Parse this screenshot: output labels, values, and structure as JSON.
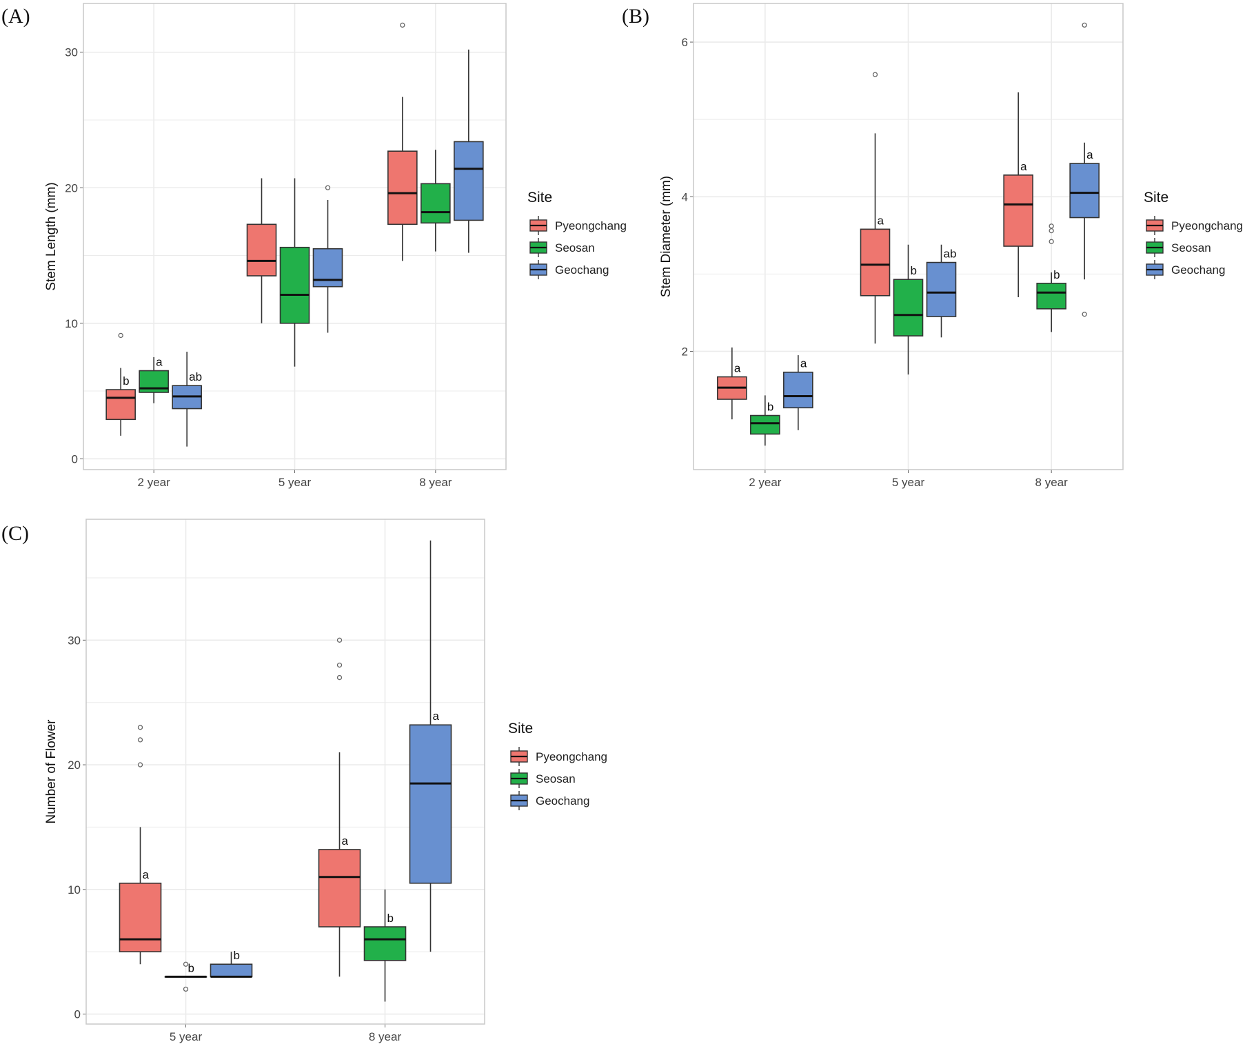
{
  "colors": {
    "Pyeongchang": "#EE766F",
    "Seosan": "#22B04A",
    "Geochang": "#6890D0",
    "grid": "#EBEBEB",
    "frame": "#C8C8C8"
  },
  "legend": {
    "title": "Site",
    "entries": [
      "Pyeongchang",
      "Seosan",
      "Geochang"
    ]
  },
  "chart_data": [
    {
      "panel": "(A)",
      "type": "box",
      "ylabel": "Stem Length (mm)",
      "xlabel": "",
      "categories": [
        "2 year",
        "5 year",
        "8 year"
      ],
      "ylim": [
        -0.8,
        33.6
      ],
      "yticks": [
        0,
        10,
        20,
        30
      ],
      "legend_position": "right",
      "series": [
        {
          "name": "Pyeongchang",
          "boxes": [
            {
              "category": "2 year",
              "min": 1.7,
              "q1": 2.9,
              "median": 4.5,
              "q3": 5.1,
              "max": 6.7,
              "outliers": [
                9.1
              ],
              "letter": "b"
            },
            {
              "category": "5 year",
              "min": 10.0,
              "q1": 13.5,
              "median": 14.6,
              "q3": 17.3,
              "max": 20.7,
              "outliers": [],
              "letter": ""
            },
            {
              "category": "8 year",
              "min": 14.6,
              "q1": 17.3,
              "median": 19.6,
              "q3": 22.7,
              "max": 26.7,
              "outliers": [
                32.0
              ],
              "letter": ""
            }
          ]
        },
        {
          "name": "Seosan",
          "boxes": [
            {
              "category": "2 year",
              "min": 4.1,
              "q1": 4.9,
              "median": 5.2,
              "q3": 6.5,
              "max": 7.5,
              "outliers": [],
              "letter": "a"
            },
            {
              "category": "5 year",
              "min": 6.8,
              "q1": 10.0,
              "median": 12.1,
              "q3": 15.6,
              "max": 20.7,
              "outliers": [],
              "letter": ""
            },
            {
              "category": "8 year",
              "min": 15.3,
              "q1": 17.4,
              "median": 18.2,
              "q3": 20.3,
              "max": 22.8,
              "outliers": [],
              "letter": ""
            }
          ]
        },
        {
          "name": "Geochang",
          "boxes": [
            {
              "category": "2 year",
              "min": 0.9,
              "q1": 3.7,
              "median": 4.6,
              "q3": 5.4,
              "max": 7.9,
              "outliers": [],
              "letter": "ab"
            },
            {
              "category": "5 year",
              "min": 9.3,
              "q1": 12.7,
              "median": 13.2,
              "q3": 15.5,
              "max": 19.1,
              "outliers": [
                20.0
              ],
              "letter": ""
            },
            {
              "category": "8 year",
              "min": 15.2,
              "q1": 17.6,
              "median": 21.4,
              "q3": 23.4,
              "max": 30.2,
              "outliers": [],
              "letter": ""
            }
          ]
        }
      ]
    },
    {
      "panel": "(B)",
      "type": "box",
      "ylabel": "Stem Diameter (mm)",
      "xlabel": "",
      "categories": [
        "2 year",
        "5 year",
        "8 year"
      ],
      "ylim": [
        0.47,
        6.5
      ],
      "yticks": [
        2,
        4,
        6
      ],
      "legend_position": "right",
      "series": [
        {
          "name": "Pyeongchang",
          "boxes": [
            {
              "category": "2 year",
              "min": 1.12,
              "q1": 1.38,
              "median": 1.53,
              "q3": 1.67,
              "max": 2.05,
              "outliers": [],
              "letter": "a"
            },
            {
              "category": "5 year",
              "min": 2.1,
              "q1": 2.72,
              "median": 3.12,
              "q3": 3.58,
              "max": 4.82,
              "outliers": [
                5.58
              ],
              "letter": "a"
            },
            {
              "category": "8 year",
              "min": 2.7,
              "q1": 3.36,
              "median": 3.9,
              "q3": 4.28,
              "max": 5.35,
              "outliers": [],
              "letter": "a"
            }
          ]
        },
        {
          "name": "Seosan",
          "boxes": [
            {
              "category": "2 year",
              "min": 0.78,
              "q1": 0.93,
              "median": 1.07,
              "q3": 1.17,
              "max": 1.43,
              "outliers": [],
              "letter": "b"
            },
            {
              "category": "5 year",
              "min": 1.7,
              "q1": 2.2,
              "median": 2.47,
              "q3": 2.93,
              "max": 3.38,
              "outliers": [],
              "letter": "b"
            },
            {
              "category": "8 year",
              "min": 2.25,
              "q1": 2.55,
              "median": 2.76,
              "q3": 2.88,
              "max": 3.02,
              "outliers": [
                3.42,
                3.56,
                3.62
              ],
              "letter": "b"
            }
          ]
        },
        {
          "name": "Geochang",
          "boxes": [
            {
              "category": "2 year",
              "min": 0.98,
              "q1": 1.27,
              "median": 1.42,
              "q3": 1.73,
              "max": 1.95,
              "outliers": [],
              "letter": "a"
            },
            {
              "category": "5 year",
              "min": 2.18,
              "q1": 2.45,
              "median": 2.76,
              "q3": 3.15,
              "max": 3.38,
              "outliers": [],
              "letter": "ab"
            },
            {
              "category": "8 year",
              "min": 2.93,
              "q1": 3.73,
              "median": 4.05,
              "q3": 4.43,
              "max": 4.7,
              "outliers": [
                2.48,
                6.22
              ],
              "letter": "a"
            }
          ]
        }
      ]
    },
    {
      "panel": "(C)",
      "type": "box",
      "ylabel": "Number of Flower",
      "xlabel": "",
      "categories": [
        "5 year",
        "8 year"
      ],
      "ylim": [
        -0.8,
        39.7
      ],
      "yticks": [
        0,
        10,
        20,
        30
      ],
      "legend_position": "right",
      "series": [
        {
          "name": "Pyeongchang",
          "boxes": [
            {
              "category": "5 year",
              "min": 4,
              "q1": 5,
              "median": 6,
              "q3": 10.5,
              "max": 15,
              "outliers": [
                20,
                22,
                23
              ],
              "letter": "a"
            },
            {
              "category": "8 year",
              "min": 3,
              "q1": 7,
              "median": 11,
              "q3": 13.2,
              "max": 21,
              "outliers": [
                27,
                28,
                30
              ],
              "letter": "a"
            }
          ]
        },
        {
          "name": "Seosan",
          "boxes": [
            {
              "category": "5 year",
              "min": 3,
              "q1": 3,
              "median": 3,
              "q3": 3,
              "max": 3,
              "outliers": [
                2,
                4
              ],
              "letter": "b"
            },
            {
              "category": "8 year",
              "min": 1,
              "q1": 4.3,
              "median": 6,
              "q3": 7,
              "max": 10,
              "outliers": [],
              "letter": "b"
            }
          ]
        },
        {
          "name": "Geochang",
          "boxes": [
            {
              "category": "5 year",
              "min": 3,
              "q1": 3,
              "median": 3,
              "q3": 4,
              "max": 5,
              "outliers": [],
              "letter": "b"
            },
            {
              "category": "8 year",
              "min": 5,
              "q1": 10.5,
              "median": 18.5,
              "q3": 23.2,
              "max": 38,
              "outliers": [],
              "letter": "a"
            }
          ]
        }
      ]
    }
  ]
}
